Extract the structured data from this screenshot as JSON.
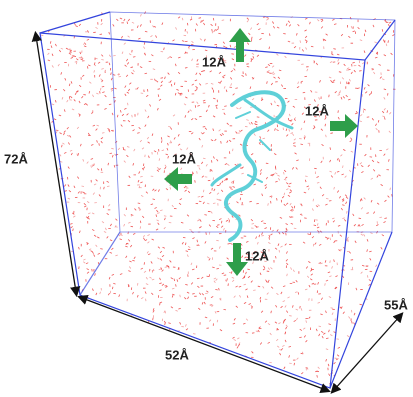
{
  "box": {
    "height": "72Å",
    "width": "52Å",
    "depth": "55Å"
  },
  "padding": {
    "top": "12Å",
    "right": "12Å",
    "left": "12Å",
    "bottom": "12Å"
  }
}
